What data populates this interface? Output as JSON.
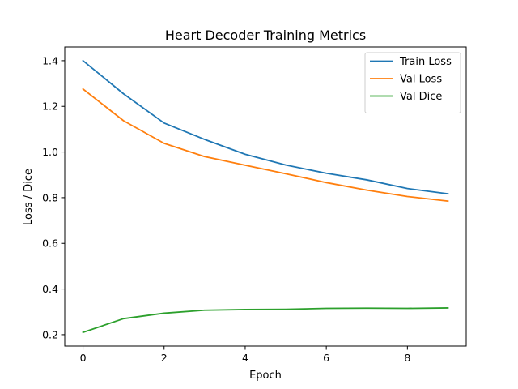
{
  "chart_data": {
    "type": "line",
    "title": "Heart Decoder Training Metrics",
    "xlabel": "Epoch",
    "ylabel": "Loss / Dice",
    "x": [
      0,
      1,
      2,
      3,
      4,
      5,
      6,
      7,
      8,
      9
    ],
    "series": [
      {
        "name": "Train Loss",
        "color": "#1f77b4",
        "values": [
          1.4,
          1.255,
          1.127,
          1.055,
          0.99,
          0.943,
          0.907,
          0.878,
          0.84,
          0.817
        ]
      },
      {
        "name": "Val Loss",
        "color": "#ff7f0e",
        "values": [
          1.276,
          1.137,
          1.038,
          0.98,
          0.942,
          0.905,
          0.866,
          0.833,
          0.805,
          0.785
        ]
      },
      {
        "name": "Val Dice",
        "color": "#2ca02c",
        "values": [
          0.21,
          0.27,
          0.294,
          0.307,
          0.31,
          0.311,
          0.315,
          0.316,
          0.315,
          0.317
        ]
      }
    ],
    "xlim": [
      -0.45,
      9.45
    ],
    "ylim": [
      0.15,
      1.46
    ],
    "xticks": [
      0,
      2,
      4,
      6,
      8
    ],
    "xtick_labels": [
      "0",
      "2",
      "4",
      "6",
      "8"
    ],
    "yticks": [
      0.2,
      0.4,
      0.6,
      0.8,
      1.0,
      1.2,
      1.4
    ],
    "ytick_labels": [
      "0.2",
      "0.4",
      "0.6",
      "0.8",
      "1.0",
      "1.2",
      "1.4"
    ],
    "grid": false,
    "legend_position": "top-right"
  }
}
